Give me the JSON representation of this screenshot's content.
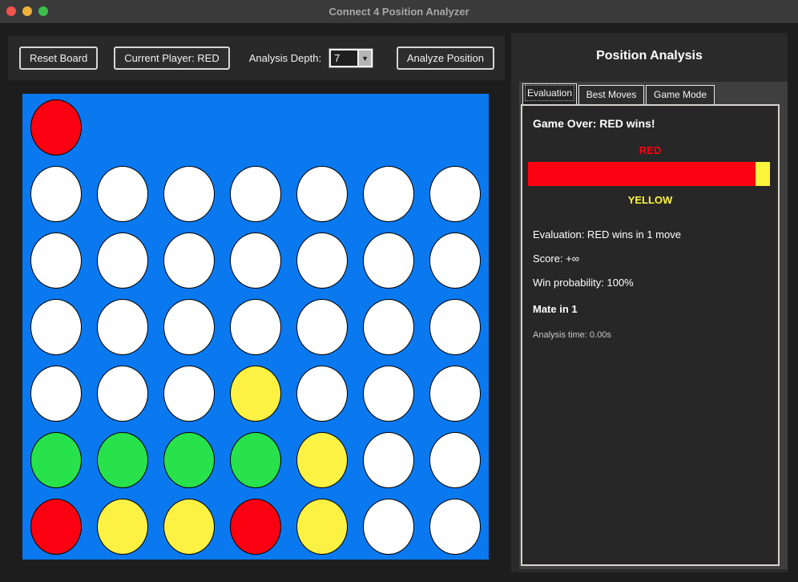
{
  "window": {
    "title": "Connect 4 Position Analyzer"
  },
  "toolbar": {
    "reset_label": "Reset Board",
    "player_label": "Current Player: RED",
    "depth_label": "Analysis Depth:",
    "depth_value": "7",
    "analyze_label": "Analyze Position"
  },
  "board": {
    "columns": 7,
    "rows": 7,
    "grid": [
      [
        "R",
        "",
        "",
        "",
        "",
        "",
        ""
      ],
      [
        "W",
        "W",
        "W",
        "W",
        "W",
        "W",
        "W"
      ],
      [
        "W",
        "W",
        "W",
        "W",
        "W",
        "W",
        "W"
      ],
      [
        "W",
        "W",
        "W",
        "W",
        "W",
        "W",
        "W"
      ],
      [
        "W",
        "W",
        "W",
        "Y",
        "W",
        "W",
        "W"
      ],
      [
        "G",
        "G",
        "G",
        "G",
        "Y",
        "W",
        "W"
      ],
      [
        "R",
        "Y",
        "Y",
        "R",
        "Y",
        "W",
        "W"
      ]
    ],
    "colors": {
      "R": "#fb0010",
      "Y": "#fdf243",
      "G": "#27e24a",
      "W": "#ffffff",
      "board": "#0a79f0"
    }
  },
  "panel": {
    "title": "Position Analysis",
    "tabs": [
      {
        "label": "Evaluation",
        "active": true
      },
      {
        "label": "Best Moves",
        "active": false
      },
      {
        "label": "Game Mode",
        "active": false
      }
    ],
    "evaluation": {
      "game_over": "Game Over: RED wins!",
      "red_label": "RED",
      "yellow_label": "YELLOW",
      "bar": {
        "red_pct": 94,
        "yellow_pct": 6,
        "red_color": "#fb0010",
        "yellow_color": "#fdf53c"
      },
      "eval_line": "Evaluation: RED wins in 1 move",
      "score_line": "Score: +∞",
      "win_prob_line": "Win probability: 100%",
      "mate_line": "Mate in 1",
      "time_line": "Analysis time: 0.00s"
    }
  }
}
